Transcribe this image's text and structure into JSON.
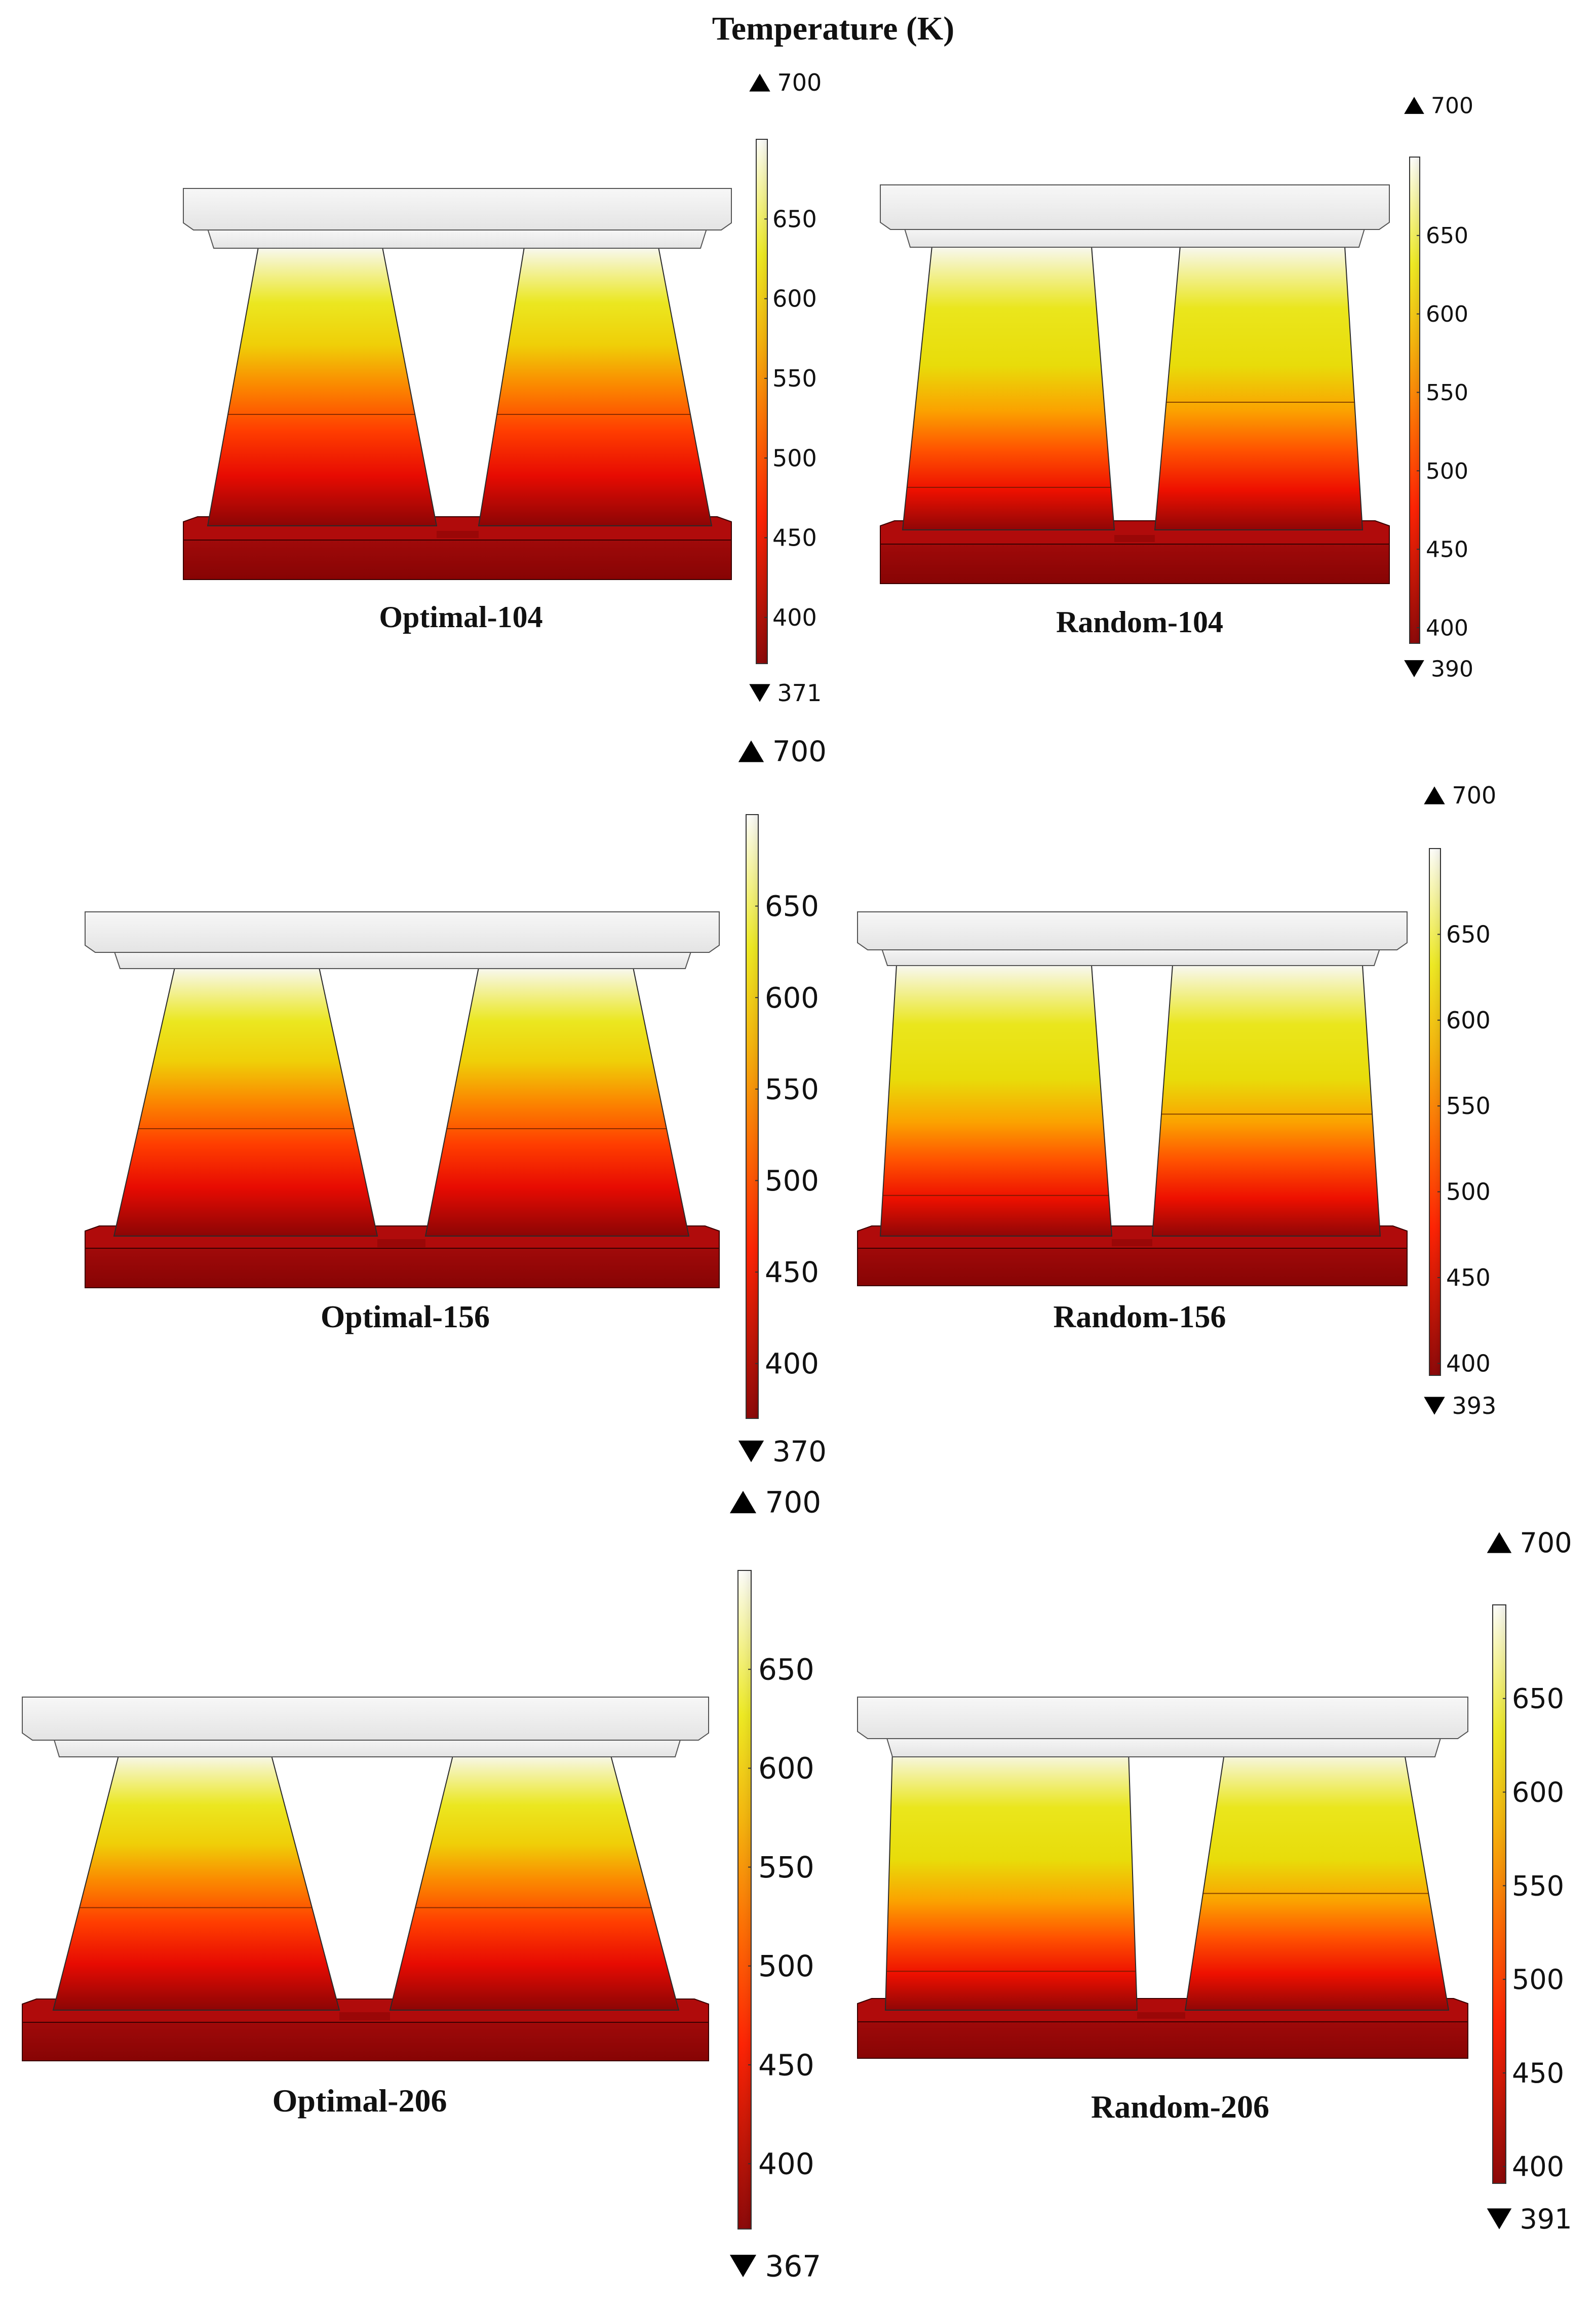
{
  "figure": {
    "title": "Temperature (K)",
    "colors": {
      "hot_top": "#fbfbf6",
      "yellow": "#e9e50a",
      "orange": "#ff7f00",
      "red": "#ff1800",
      "dark_red": "#8f0606",
      "plate": "#f2f2f2"
    }
  },
  "panels": [
    {
      "label": "Optimal-104",
      "legend": {
        "max_label": "700",
        "min_label": "371",
        "ticks": [
          "650",
          "600",
          "550",
          "500",
          "450",
          "400"
        ],
        "range": [
          371,
          700
        ],
        "tick_values": [
          650,
          600,
          550,
          500,
          450,
          400
        ]
      }
    },
    {
      "label": "Random-104",
      "legend": {
        "max_label": "700",
        "min_label": "390",
        "ticks": [
          "650",
          "600",
          "550",
          "500",
          "450",
          "400"
        ],
        "range": [
          390,
          700
        ],
        "tick_values": [
          650,
          600,
          550,
          500,
          450,
          400
        ]
      }
    },
    {
      "label": "Optimal-156",
      "legend": {
        "max_label": "700",
        "min_label": "370",
        "ticks": [
          "650",
          "600",
          "550",
          "500",
          "450",
          "400"
        ],
        "range": [
          370,
          700
        ],
        "tick_values": [
          650,
          600,
          550,
          500,
          450,
          400
        ]
      }
    },
    {
      "label": "Random-156",
      "legend": {
        "max_label": "700",
        "min_label": "393",
        "ticks": [
          "650",
          "600",
          "550",
          "500",
          "450",
          "400"
        ],
        "range": [
          393,
          700
        ],
        "tick_values": [
          650,
          600,
          550,
          500,
          450,
          400
        ]
      }
    },
    {
      "label": "Optimal-206",
      "legend": {
        "max_label": "700",
        "min_label": "367",
        "ticks": [
          "650",
          "600",
          "550",
          "500",
          "450",
          "400"
        ],
        "range": [
          367,
          700
        ],
        "tick_values": [
          650,
          600,
          550,
          500,
          450,
          400
        ]
      }
    },
    {
      "label": "Random-206",
      "legend": {
        "max_label": "700",
        "min_label": "391",
        "ticks": [
          "650",
          "600",
          "550",
          "500",
          "450",
          "400"
        ],
        "range": [
          391,
          700
        ],
        "tick_values": [
          650,
          600,
          550,
          500,
          450,
          400
        ]
      }
    }
  ]
}
